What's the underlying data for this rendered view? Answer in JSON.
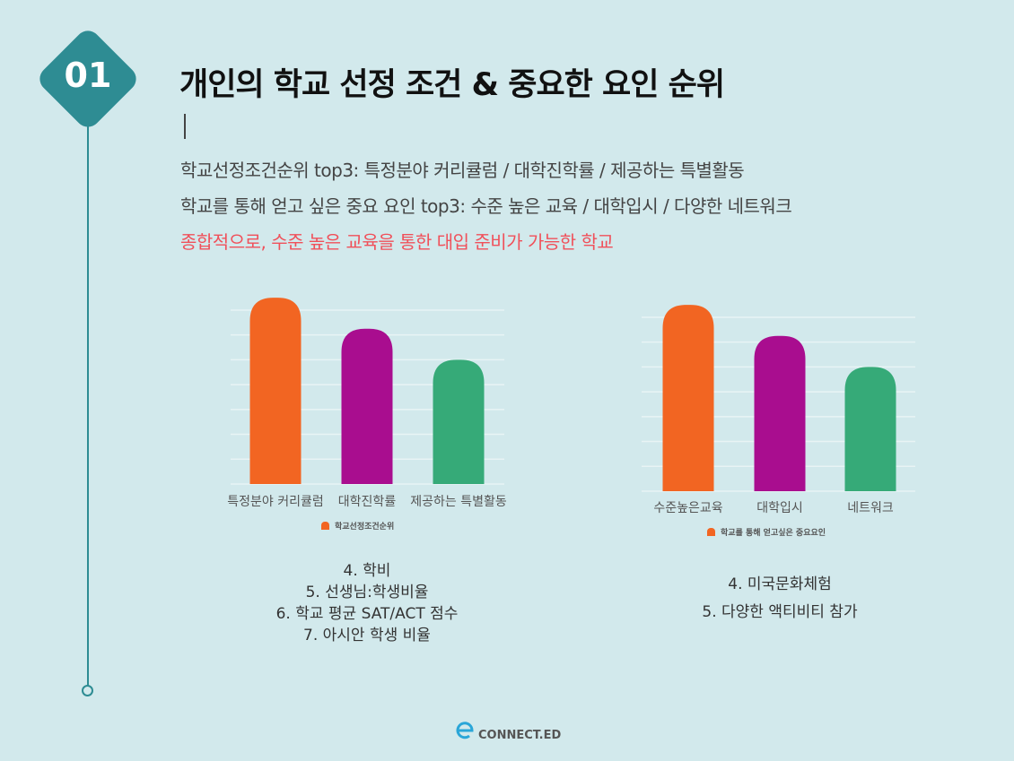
{
  "badge": "01",
  "title": "개인의 학교 선정 조건 & 중요한 요인 순위",
  "lines": [
    "학교선정조건순위 top3: 특정분야 커리큘럼 / 대학진학률 / 제공하는 특별활동",
    "학교를 통해 얻고 싶은 중요 요인 top3: 수준 높은 교육 / 대학입시 / 다양한 네트워크",
    "종합적으로, 수준 높은 교육을 통한 대입 준비가 가능한 학교"
  ],
  "colors": {
    "accent": "#2e8c93",
    "highlight": "#f0505a",
    "bars": [
      "#f26522",
      "#a90d8f",
      "#36aa78"
    ]
  },
  "chart_data": [
    {
      "type": "bar",
      "categories": [
        "특정분야 커리큘럼",
        "대학진학률",
        "제공하는 특별활동"
      ],
      "values": [
        3,
        2.5,
        2
      ],
      "ylim": [
        0,
        3
      ],
      "grid": true,
      "legend": "bottom",
      "series": [
        {
          "name": "학교선정조건순위"
        }
      ]
    },
    {
      "type": "bar",
      "categories": [
        "수준높은교육",
        "대학입시",
        "네트워크"
      ],
      "values": [
        3,
        2.5,
        2
      ],
      "ylim": [
        0,
        3
      ],
      "grid": true,
      "legend": "bottom",
      "series": [
        {
          "name": "학교를 통해 얻고싶은 중요요인"
        }
      ]
    }
  ],
  "left_list": [
    "4. 학비",
    "5. 선생님:학생비율",
    "6. 학교 평균 SAT/ACT 점수",
    "7. 아시안 학생 비율"
  ],
  "right_list": [
    "4. 미국문화체험",
    "5. 다양한 액티비티 참가"
  ],
  "logo": {
    "letter": "e",
    "text": "CONNECT.ED"
  }
}
